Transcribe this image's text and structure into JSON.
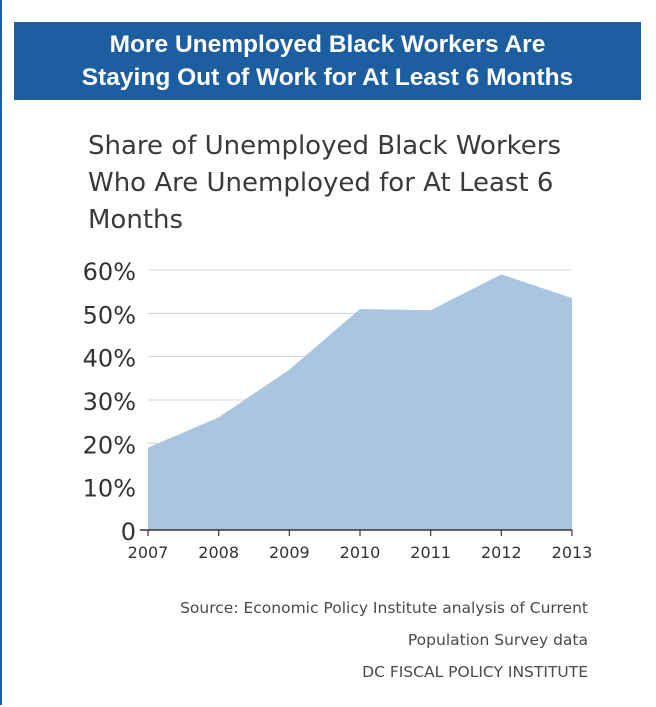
{
  "banner": {
    "line1": "More Unemployed Black Workers Are",
    "line2": "Staying Out of Work for At Least 6 Months"
  },
  "chart_data": {
    "type": "area",
    "title_lines": [
      "Share of Unemployed Black Workers",
      "Who Are Unemployed for At Least 6",
      "Months"
    ],
    "x": [
      "2007",
      "2008",
      "2009",
      "2010",
      "2011",
      "2012",
      "2013"
    ],
    "values": [
      19,
      26,
      37,
      51,
      50.7,
      59,
      53.5
    ],
    "ylim": [
      0,
      60
    ],
    "yticks": [
      0,
      10,
      20,
      30,
      40,
      50,
      60
    ],
    "ytick_labels": [
      "0",
      "10%",
      "20%",
      "30%",
      "40%",
      "50%",
      "60%"
    ],
    "grid": true,
    "colors": {
      "fill": "#a9c5df",
      "grid": "#d3d3d3",
      "axis": "#333333"
    }
  },
  "source": {
    "line1": "Source: Economic Policy Institute analysis of Current",
    "line2": "Population Survey data",
    "line3": "DC FISCAL POLICY INSTITUTE"
  }
}
